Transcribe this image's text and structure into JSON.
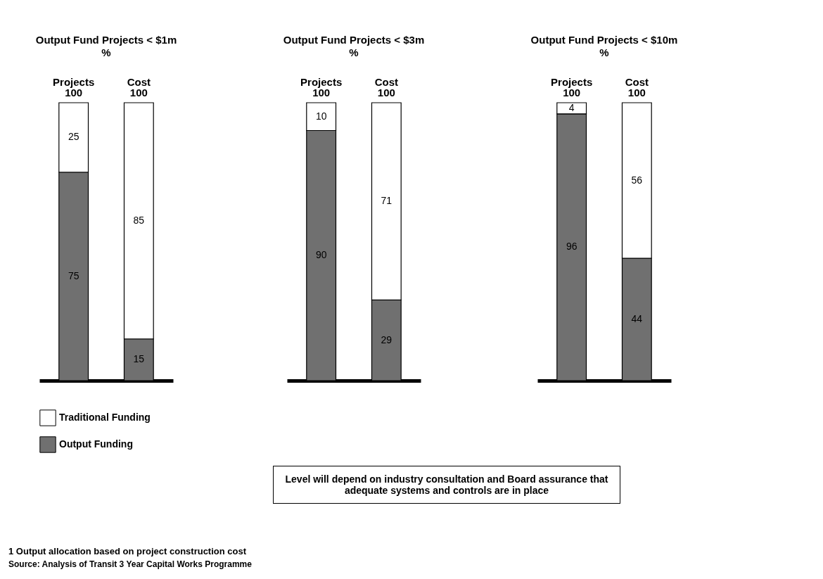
{
  "chart_data": [
    {
      "type": "bar",
      "title": "Output Fund Projects < $1m",
      "subtitle": "%",
      "stacked": true,
      "categories": [
        "Projects",
        "Cost"
      ],
      "series": [
        {
          "name": "Output Funding",
          "color": "#707070",
          "values": [
            75,
            15
          ]
        },
        {
          "name": "Traditional Funding",
          "color": "#ffffff",
          "values": [
            25,
            85
          ]
        }
      ],
      "totals": [
        "100",
        "100"
      ],
      "data_labels": true,
      "ylim": [
        0,
        100
      ],
      "tick_labels": "x",
      "legend": "bottom left",
      "annotations": [
        "Level will depend on industry consultation and Board assurance that adequate systems and controls are in place",
        "1 Output allocation based on project construction cost",
        "Source: Analysis of Transit 3 Year Capital Works Programme"
      ]
    },
    {
      "type": "bar",
      "title": "Output Fund Projects < $3m",
      "subtitle": "%",
      "stacked": true,
      "categories": [
        "Projects",
        "Cost"
      ],
      "series": [
        {
          "color": "#707070",
          "values": [
            90,
            29
          ]
        },
        {
          "color": "#ffffff",
          "values": [
            10,
            71
          ]
        }
      ],
      "totals": [
        "100",
        "100"
      ],
      "data_labels": true,
      "ylim": [
        0,
        100
      ],
      "tick_labels": "x"
    },
    {
      "type": "bar",
      "title": "Output Fund Projects < $10m",
      "subtitle": "%",
      "stacked": true,
      "categories": [
        "Projects",
        "Cost"
      ],
      "series": [
        {
          "color": "#707070",
          "values": [
            96,
            44
          ]
        },
        {
          "color": "#ffffff",
          "values": [
            4,
            56
          ]
        }
      ],
      "totals": [
        "100",
        "100"
      ],
      "data_labels": true,
      "ylim": [
        0,
        100
      ],
      "tick_labels": "x"
    }
  ]
}
